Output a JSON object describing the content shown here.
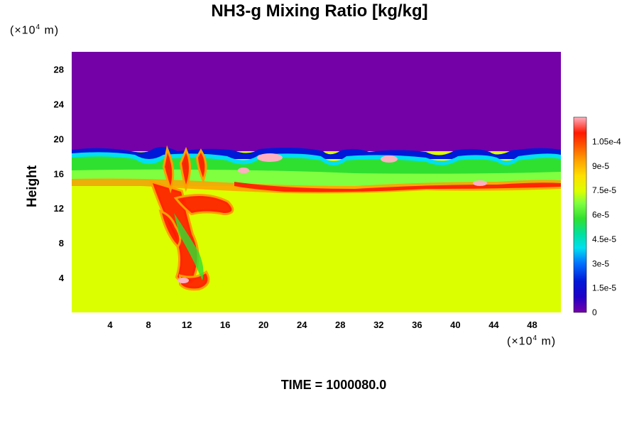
{
  "chart_data": {
    "type": "heatmap",
    "title": "NH3-g Mixing Ratio [kg/kg]",
    "ylabel": "Height",
    "x_unit": {
      "prefix": "(×10",
      "exp": "4",
      "suffix": " m)"
    },
    "y_unit": {
      "prefix": "(×10",
      "exp": "4",
      "suffix": " m)"
    },
    "xlim": [
      0,
      51
    ],
    "ylim": [
      0,
      30
    ],
    "x_ticks": [
      4,
      8,
      12,
      16,
      20,
      24,
      28,
      32,
      36,
      40,
      44,
      48
    ],
    "y_ticks": [
      4,
      8,
      12,
      16,
      20,
      24,
      28
    ],
    "colorbar": {
      "range": [
        0,
        0.00012
      ],
      "tick_labels": [
        "0",
        "1.5e-5",
        "3e-5",
        "4.5e-5",
        "6e-5",
        "7.5e-5",
        "9e-5",
        "1.05e-4"
      ],
      "tick_values": [
        0,
        1.5e-05,
        3e-05,
        4.5e-05,
        6e-05,
        7.5e-05,
        9e-05,
        0.000105
      ]
    },
    "time_label": "TIME = 1000080.0"
  },
  "colors": {
    "purple": "#7400a8",
    "blue": "#0018d8",
    "cyan": "#00e0f0",
    "green": "#30e030",
    "light_green": "#80ff40",
    "yellow_green": "#dcff00",
    "orange": "#ffa000",
    "red": "#ff1800",
    "pink": "#ffb0c0"
  }
}
